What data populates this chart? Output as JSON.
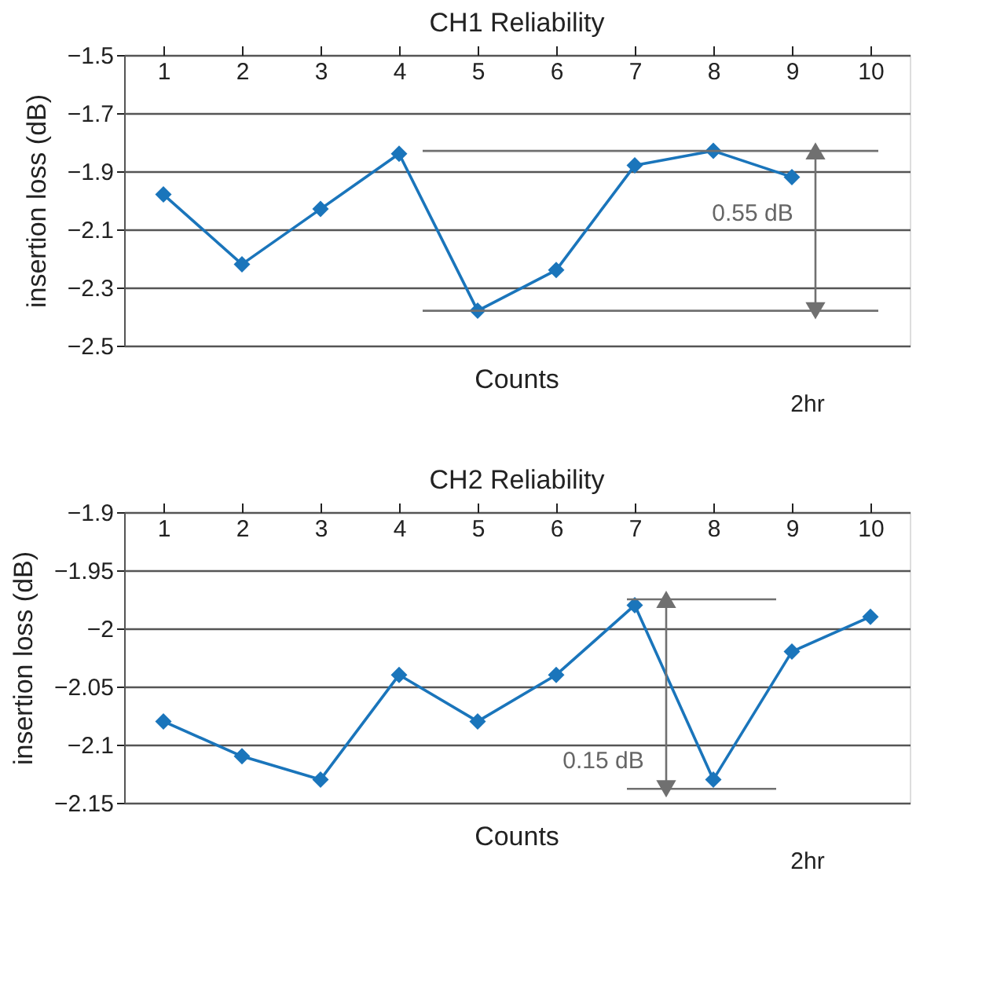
{
  "chart_data": [
    {
      "type": "line",
      "title": "CH1 Reliability",
      "xlabel": "Counts",
      "ylabel": "insertion loss (dB)",
      "categories": [
        "1",
        "2",
        "3",
        "4",
        "5",
        "6",
        "7",
        "8",
        "9",
        "10"
      ],
      "series": [
        {
          "color": "#1a75bb",
          "values": [
            -1.98,
            -2.22,
            -2.03,
            -1.84,
            -2.38,
            -2.24,
            -1.88,
            -1.83,
            -1.92,
            null
          ]
        }
      ],
      "ylim": [
        -2.5,
        -1.5
      ],
      "yticks": [
        -2.5,
        -2.3,
        -2.1,
        -1.9,
        -1.7,
        -1.5
      ],
      "grid": "y",
      "marker": "diamond",
      "line_style": "solid",
      "ref_lines": [
        {
          "axis": "y",
          "value": -1.83,
          "label": null,
          "color": "#707070"
        },
        {
          "axis": "y",
          "value": -2.38,
          "label": null,
          "color": "#707070"
        }
      ],
      "annotations": [
        "0.55 dB",
        "2hr"
      ]
    },
    {
      "type": "line",
      "title": "CH2 Reliability",
      "xlabel": "Counts",
      "ylabel": "insertion loss (dB)",
      "categories": [
        "1",
        "2",
        "3",
        "4",
        "5",
        "6",
        "7",
        "8",
        "9",
        "10"
      ],
      "series": [
        {
          "color": "#1a75bb",
          "values": [
            -2.08,
            -2.11,
            -2.13,
            -2.04,
            -2.08,
            -2.04,
            -1.98,
            -2.13,
            -2.02,
            -1.99
          ]
        }
      ],
      "ylim": [
        -2.15,
        -1.9
      ],
      "yticks": [
        -2.15,
        -2.1,
        -2.05,
        -2,
        -1.95,
        -1.9
      ],
      "grid": "y",
      "marker": "diamond",
      "line_style": "solid",
      "ref_lines": [
        {
          "axis": "y",
          "value": -1.975,
          "label": null,
          "color": "#707070"
        },
        {
          "axis": "y",
          "value": -2.138,
          "label": null,
          "color": "#707070"
        }
      ],
      "annotations": [
        "0.15 dB",
        "2hr"
      ]
    }
  ]
}
